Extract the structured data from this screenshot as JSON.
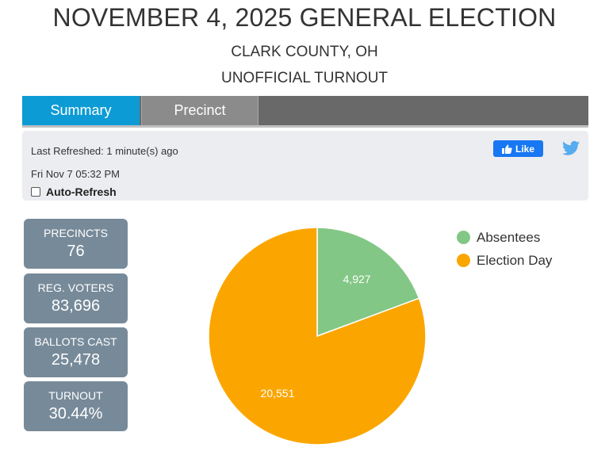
{
  "header": {
    "title": "NOVEMBER 4, 2025 GENERAL ELECTION",
    "county": "CLARK COUNTY, OH",
    "subtitle": "UNOFFICIAL TURNOUT"
  },
  "tabs": [
    {
      "label": "Summary",
      "active": true
    },
    {
      "label": "Precinct",
      "active": false
    }
  ],
  "info": {
    "last_refreshed": "Last Refreshed: 1 minute(s) ago",
    "datetime": "Fri Nov 7 05:32 PM",
    "auto_refresh_label": "Auto-Refresh",
    "auto_refresh_checked": false,
    "like_label": "Like"
  },
  "stats": [
    {
      "label": "PRECINCTS",
      "value": "76"
    },
    {
      "label": "REG. VOTERS",
      "value": "83,696"
    },
    {
      "label": "BALLOTS CAST",
      "value": "25,478"
    },
    {
      "label": "TURNOUT",
      "value": "30.44%"
    }
  ],
  "colors": {
    "absentees": "#82c785",
    "election_day": "#fba600",
    "summary_tab": "#0d9bd5",
    "stat_box": "#778a99"
  },
  "chart_data": {
    "type": "pie",
    "categories": [
      "Absentees",
      "Election Day"
    ],
    "values": [
      4927,
      20551
    ],
    "labels": [
      "4,927",
      "20,551"
    ],
    "colors": [
      "#82c785",
      "#fba600"
    ],
    "legend_position": "top-right"
  }
}
